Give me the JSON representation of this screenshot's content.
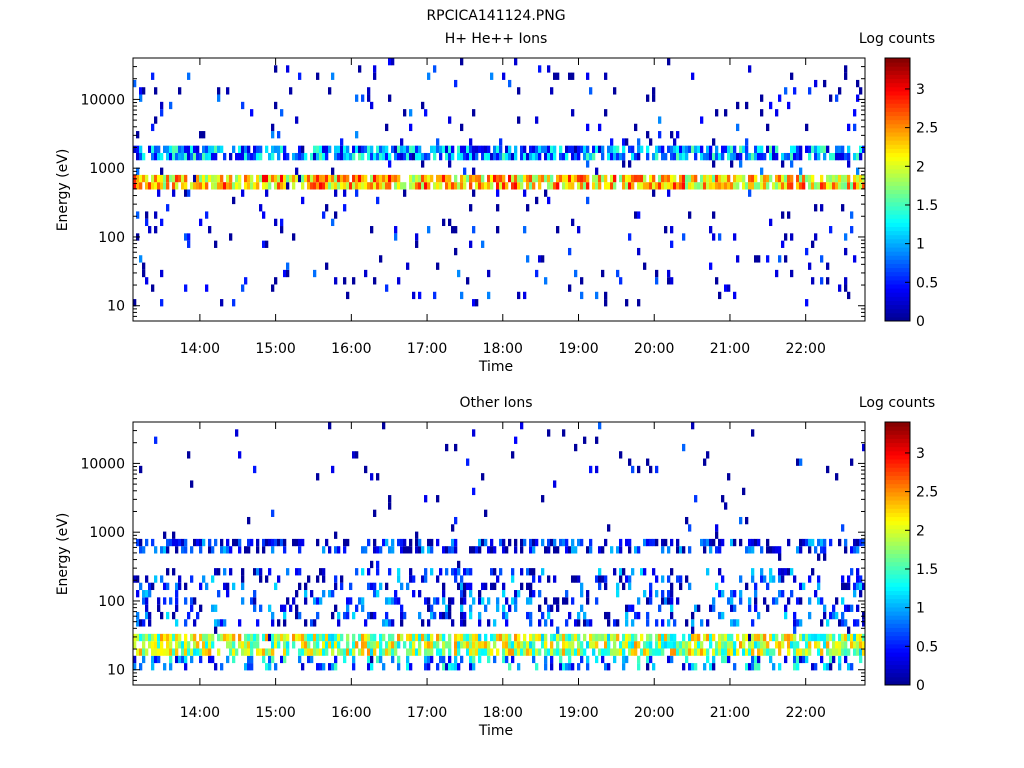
{
  "figure_title": "RPCICA141124.PNG",
  "colors": {
    "colormap": [
      "#00008f",
      "#0000ff",
      "#007fff",
      "#00ffff",
      "#7fff7f",
      "#ffff00",
      "#ff7f00",
      "#ff0000",
      "#7f0000"
    ],
    "background": "#ffffff",
    "axis": "#000000"
  },
  "chart_data": [
    {
      "type": "heatmap",
      "title": "H+ He++ Ions",
      "xlabel": "Time",
      "ylabel": "Energy (eV)",
      "yscale": "log",
      "ylim": [
        6,
        40000
      ],
      "xlim": [
        "13:07",
        "22:47"
      ],
      "xticks": [
        "14:00",
        "15:00",
        "16:00",
        "17:00",
        "18:00",
        "19:00",
        "20:00",
        "21:00",
        "22:00"
      ],
      "yticks": [
        "10",
        "100",
        "1000",
        "10000"
      ],
      "colorbar": {
        "label": "Log counts",
        "range": [
          0,
          3.4
        ],
        "ticks": [
          "0",
          "0.5",
          "1",
          "1.5",
          "2",
          "2.5",
          "3"
        ]
      },
      "bands": [
        {
          "energy_range": [
            500,
            800
          ],
          "typical_log_counts": 2.3,
          "occupancy": 0.85,
          "description": "strong proton band"
        },
        {
          "energy_range": [
            1300,
            1900
          ],
          "typical_log_counts": 0.9,
          "occupancy": 0.75,
          "description": "secondary band"
        },
        {
          "energy_range": [
            9,
            40000
          ],
          "typical_log_counts": 0.2,
          "occupancy": 0.05,
          "description": "sparse background"
        }
      ]
    },
    {
      "type": "heatmap",
      "title": "Other Ions",
      "xlabel": "Time",
      "ylabel": "Energy (eV)",
      "yscale": "log",
      "ylim": [
        6,
        40000
      ],
      "xlim": [
        "13:07",
        "22:47"
      ],
      "xticks": [
        "14:00",
        "15:00",
        "16:00",
        "17:00",
        "18:00",
        "19:00",
        "20:00",
        "21:00",
        "22:00"
      ],
      "yticks": [
        "10",
        "100",
        "1000",
        "10000"
      ],
      "colorbar": {
        "label": "Log counts",
        "range": [
          0,
          3.4
        ],
        "ticks": [
          "0",
          "0.5",
          "1",
          "1.5",
          "2",
          "2.5",
          "3"
        ]
      },
      "bands": [
        {
          "energy_range": [
            15,
            32
          ],
          "typical_log_counts": 1.8,
          "occupancy": 0.8,
          "description": "low-energy heavy ion band"
        },
        {
          "energy_range": [
            9,
            15
          ],
          "typical_log_counts": 0.9,
          "occupancy": 0.35,
          "description": "lowest bins"
        },
        {
          "energy_range": [
            500,
            800
          ],
          "typical_log_counts": 0.4,
          "occupancy": 0.45,
          "description": "weak band"
        },
        {
          "energy_range": [
            40,
            300
          ],
          "typical_log_counts": 0.5,
          "occupancy": 0.25,
          "description": "scattered counts 16:00-18:00"
        },
        {
          "energy_range": [
            9,
            40000
          ],
          "typical_log_counts": 0.1,
          "occupancy": 0.02,
          "description": "sparse background"
        }
      ]
    }
  ]
}
